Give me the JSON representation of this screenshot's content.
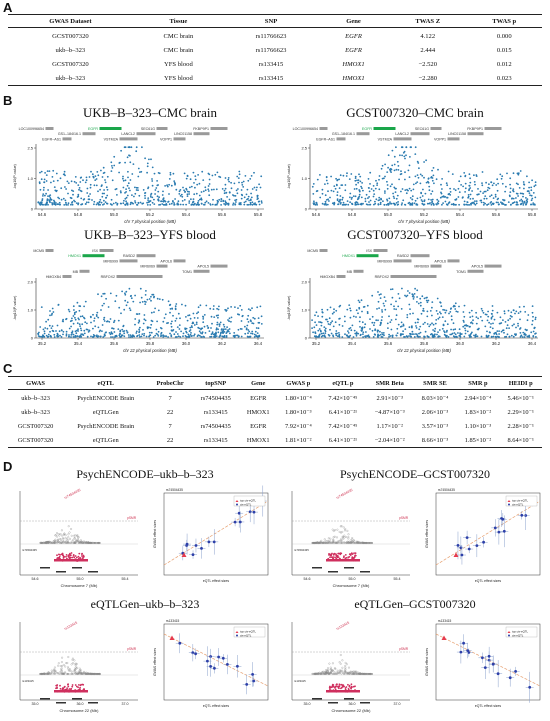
{
  "panelA": {
    "letter": "A",
    "headers": [
      "GWAS Dataset",
      "Tissue",
      "SNP",
      "Gene",
      "TWAS Z",
      "TWAS p"
    ],
    "rows": [
      [
        "GCST007320",
        "CMC brain",
        "rs11766623",
        "EGFR",
        "4.122",
        "0.000"
      ],
      [
        "ukb–b–323",
        "CMC brain",
        "rs11766623",
        "EGFR",
        "2.444",
        "0.015"
      ],
      [
        "GCST007320",
        "YFS blood",
        "rs133415",
        "HMOX1",
        "−2.520",
        "0.012"
      ],
      [
        "ukb–b–323",
        "YFS blood",
        "rs133415",
        "HMOX1",
        "−2.280",
        "0.023"
      ]
    ]
  },
  "panelB": {
    "letter": "B",
    "plots": [
      {
        "title": "UKB–B–323–CMC brain",
        "xlabel": "chr 7 physical position (MB)",
        "ticks": [
          "54.6",
          "54.8",
          "55.0",
          "55.2",
          "55.4",
          "55.6",
          "55.8"
        ],
        "ylabel": "-log10(P-value)",
        "ytop": "2.5"
      },
      {
        "title": "GCST007320–CMC brain",
        "xlabel": "chr 7 physical position (MB)",
        "ticks": [
          "54.6",
          "54.8",
          "55.0",
          "55.2",
          "55.4",
          "55.6",
          "55.8"
        ],
        "ylabel": "-log10(P-value)",
        "ytop": "2.5"
      },
      {
        "title": "UKB–B–323–YFS blood",
        "xlabel": "chr 22 physical position (MB)",
        "ticks": [
          "35.2",
          "35.4",
          "35.6",
          "35.8",
          "36.0",
          "36.2",
          "36.4"
        ],
        "ylabel": "-log10(P-value)",
        "ytop": "2.0"
      },
      {
        "title": "GCST007320–YFS blood",
        "xlabel": "chr 22 physical position (MB)",
        "ticks": [
          "35.2",
          "35.4",
          "35.6",
          "35.8",
          "36.0",
          "36.2",
          "36.4"
        ],
        "ylabel": "-log10(P-value)",
        "ytop": "2.0"
      }
    ],
    "genes_cmc": [
      "LOC100996654",
      "GS1–184I16.1",
      "VSTM2A",
      "SEC61G",
      "LINC01158",
      "EGFR–AS1",
      "EGFR",
      "LANCL2",
      "VOPP1",
      "FKBP9P1"
    ],
    "genes_yfs": [
      "MCM5",
      "HMOX1",
      "MIR6999",
      "MIR6069",
      "TOM1",
      "HMGXB4",
      "ISX",
      "RASD2",
      "APOL6",
      "APOL5",
      "MB",
      "RBFOX2"
    ]
  },
  "panelC": {
    "letter": "C",
    "headers": [
      "GWAS",
      "eQTL",
      "ProbeChr",
      "topSNP",
      "Gene",
      "GWAS p",
      "eQTL p",
      "SMR Beta",
      "SMR SE",
      "SMR p",
      "HEIDI p"
    ],
    "rows": [
      [
        "ukb–b–323",
        "PsychENCODE Brain",
        "7",
        "rs74504435",
        "EGFR",
        "1.80×10⁻⁴",
        "7.42×10⁻⁴⁵",
        "2.91×10⁻³",
        "8.03×10⁻⁴",
        "2.94×10⁻⁴",
        "5.46×10⁻¹"
      ],
      [
        "ukb–b–323",
        "eQTLGen",
        "22",
        "rs133415",
        "HMOX1",
        "1.80×10⁻³",
        "6.41×10⁻²¹",
        "−4.87×10⁻³",
        "2.06×10⁻³",
        "1.83×10⁻²",
        "2.29×10⁻¹"
      ],
      [
        "GCST007320",
        "PsychENCODE Brain",
        "7",
        "rs74504435",
        "EGFR",
        "7.92×10⁻⁴",
        "7.42×10⁻⁴⁵",
        "1.17×10⁻²",
        "3.57×10⁻³",
        "1.10×10⁻³",
        "2.28×10⁻¹"
      ],
      [
        "GCST007320",
        "eQTLGen",
        "22",
        "rs133415",
        "HMOX1",
        "1.81×10⁻²",
        "6.41×10⁻²¹",
        "−2.04×10⁻²",
        "8.66×10⁻³",
        "1.85×10⁻²",
        "8.64×10⁻¹"
      ]
    ]
  },
  "panelD": {
    "letter": "D",
    "plots": [
      {
        "title": "PsychENCODE–ukb–b–323",
        "xlabel": "Chromosome 7 (Mb)",
        "ticks": [
          "54.6",
          "55.0",
          "55.4"
        ],
        "rsnp": "rs74504435",
        "effect_x": "eQTL effect sizes",
        "effect_y": "GWAS effect sizes",
        "leg1": "top cis-eQTL",
        "leg2": "cis-eQTL"
      },
      {
        "title": "PsychENCODE–GCST007320",
        "xlabel": "Chromosome 7 (Mb)",
        "ticks": [
          "54.6",
          "55.0",
          "55.4"
        ],
        "rsnp": "rs74504435",
        "effect_x": "eQTL effect sizes",
        "effect_y": "GWAS effect sizes",
        "leg1": "top cis-eQTL",
        "leg2": "cis-eQTL"
      },
      {
        "title": "eQTLGen–ukb–b–323",
        "xlabel": "Chromosome 22 (Mb)",
        "ticks": [
          "35.0",
          "36.0",
          "37.0"
        ],
        "rsnp": "rs133415",
        "effect_x": "eQTL effect sizes",
        "effect_y": "GWAS effect sizes",
        "leg1": "top cis-eQTL",
        "leg2": "cis-eQTL"
      },
      {
        "title": "eQTLGen–GCST007320",
        "xlabel": "Chromosome 22 (Mb)",
        "ticks": [
          "35.0",
          "36.0",
          "37.0"
        ],
        "rsnp": "rs133415",
        "effect_x": "eQTL effect sizes",
        "effect_y": "GWAS effect sizes",
        "leg1": "top cis-eQTL",
        "leg2": "cis-eQTL"
      }
    ]
  },
  "colors": {
    "point": "#2a7bb0",
    "gene_hit": "#1aa64a",
    "gene_box": "#9a9a9a",
    "eqtl": "#cf2f5e",
    "fit": "#e7a070"
  }
}
